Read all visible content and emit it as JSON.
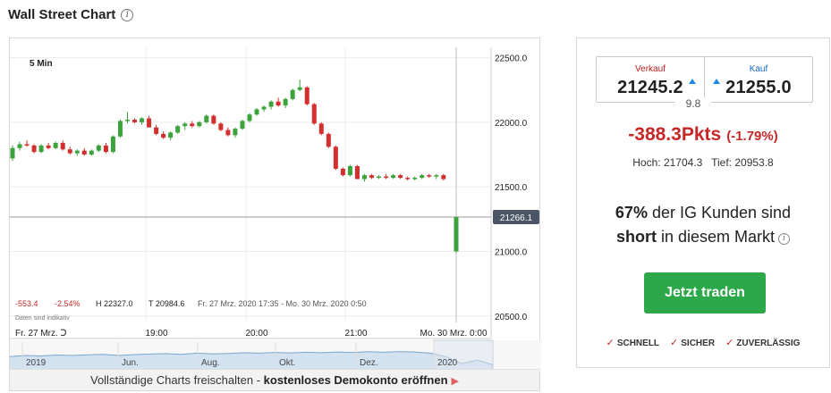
{
  "header": {
    "title": "Wall Street Chart",
    "info_icon": "info-circle-icon"
  },
  "chart": {
    "interval_label": "5 Min",
    "stats": {
      "change": "-553.4",
      "change_pct": "-2.54%",
      "high": "H 22327.0",
      "low": "T 20984.6",
      "range": "Fr. 27 Mrz. 2020 17:35 - Mo. 30 Mrz. 2020 0:50",
      "note": "Daten sind indikativ"
    },
    "current_price_label": "21266.1",
    "x_labels": [
      "Fr. 27 Mrz. Ↄ",
      "19:00",
      "20:00",
      "21:00",
      "Mo. 30 Mrz. 0:00"
    ],
    "navigator_labels": [
      "2019",
      "Jun.",
      "Aug.",
      "Okt.",
      "Dez.",
      "2020"
    ],
    "colors": {
      "up": "#3ca33c",
      "down": "#d32f2f",
      "nav_fill": "#c9dced",
      "nav_line": "#7aa6cc"
    }
  },
  "chart_data": {
    "type": "candlestick",
    "title": "",
    "yticks": [
      20500.0,
      21000.0,
      21500.0,
      22000.0,
      22500.0
    ],
    "ylim": [
      20450,
      22580
    ],
    "last_price": 21266.1,
    "grid": true,
    "ohlc": [
      [
        21720,
        21820,
        21700,
        21800
      ],
      [
        21800,
        21850,
        21780,
        21830
      ],
      [
        21830,
        21860,
        21810,
        21820
      ],
      [
        21820,
        21830,
        21760,
        21770
      ],
      [
        21770,
        21830,
        21760,
        21820
      ],
      [
        21820,
        21840,
        21790,
        21800
      ],
      [
        21800,
        21850,
        21790,
        21840
      ],
      [
        21840,
        21860,
        21780,
        21790
      ],
      [
        21790,
        21810,
        21750,
        21760
      ],
      [
        21760,
        21790,
        21740,
        21780
      ],
      [
        21780,
        21800,
        21740,
        21750
      ],
      [
        21750,
        21790,
        21740,
        21780
      ],
      [
        21780,
        21830,
        21770,
        21820
      ],
      [
        21820,
        21840,
        21760,
        21770
      ],
      [
        21770,
        21900,
        21760,
        21890
      ],
      [
        21890,
        22020,
        21880,
        22010
      ],
      [
        22010,
        22080,
        21990,
        22020
      ],
      [
        22020,
        22030,
        21990,
        22000
      ],
      [
        22000,
        22040,
        21980,
        22030
      ],
      [
        22030,
        22050,
        21960,
        21960
      ],
      [
        21960,
        21980,
        21900,
        21910
      ],
      [
        21910,
        21930,
        21870,
        21880
      ],
      [
        21880,
        21930,
        21860,
        21920
      ],
      [
        21920,
        21980,
        21910,
        21970
      ],
      [
        21970,
        22000,
        21940,
        21990
      ],
      [
        21990,
        22010,
        21960,
        21970
      ],
      [
        21970,
        22010,
        21960,
        22000
      ],
      [
        22000,
        22060,
        21990,
        22050
      ],
      [
        22050,
        22060,
        21980,
        21990
      ],
      [
        21990,
        22000,
        21930,
        21940
      ],
      [
        21940,
        21960,
        21890,
        21900
      ],
      [
        21900,
        21960,
        21880,
        21950
      ],
      [
        21950,
        22020,
        21940,
        22010
      ],
      [
        22010,
        22070,
        22000,
        22060
      ],
      [
        22060,
        22110,
        22050,
        22100
      ],
      [
        22100,
        22130,
        22080,
        22120
      ],
      [
        22120,
        22170,
        22100,
        22160
      ],
      [
        22160,
        22190,
        22120,
        22130
      ],
      [
        22130,
        22190,
        22110,
        22180
      ],
      [
        22180,
        22260,
        22170,
        22250
      ],
      [
        22250,
        22330,
        22240,
        22270
      ],
      [
        22270,
        22280,
        22130,
        22140
      ],
      [
        22140,
        22150,
        21980,
        21990
      ],
      [
        21990,
        22000,
        21900,
        21910
      ],
      [
        21910,
        21920,
        21800,
        21810
      ],
      [
        21810,
        21820,
        21630,
        21640
      ],
      [
        21640,
        21650,
        21580,
        21590
      ],
      [
        21590,
        21670,
        21580,
        21660
      ],
      [
        21660,
        21670,
        21560,
        21560
      ],
      [
        21560,
        21600,
        21540,
        21590
      ],
      [
        21590,
        21600,
        21560,
        21570
      ],
      [
        21570,
        21590,
        21560,
        21580
      ],
      [
        21580,
        21600,
        21560,
        21570
      ],
      [
        21570,
        21600,
        21560,
        21590
      ],
      [
        21590,
        21600,
        21560,
        21570
      ],
      [
        21570,
        21580,
        21550,
        21560
      ],
      [
        21560,
        21580,
        21550,
        21570
      ],
      [
        21570,
        21600,
        21560,
        21590
      ],
      [
        21590,
        21600,
        21570,
        21580
      ],
      [
        21580,
        21600,
        21560,
        21590
      ],
      [
        21590,
        21600,
        21550,
        21560
      ],
      [
        21000,
        21270,
        20990,
        21266.1
      ]
    ],
    "ohlc_order": [
      "open",
      "high",
      "low",
      "close"
    ]
  },
  "deal": {
    "sell_label": "Verkauf",
    "sell_price": "21245.2",
    "buy_label": "Kauf",
    "buy_price": "21255.0",
    "spread": "9.8",
    "change_points": "-388.3Pkts",
    "change_pct": "(-1.79%)",
    "high": "Hoch: 21704.3",
    "low": "Tief: 20953.8",
    "sentiment_pct": "67%",
    "sentiment_mid": "der IG Kunden sind",
    "sentiment_dir": "short",
    "sentiment_end": "in diesem Markt",
    "trade_button": "Jetzt traden",
    "features": [
      "SCHNELL",
      "SICHER",
      "ZUVERLÄSSIG"
    ]
  },
  "cta": {
    "text": "Vollständige Charts freischalten -",
    "bold": "kostenloses Demokonto eröffnen"
  }
}
